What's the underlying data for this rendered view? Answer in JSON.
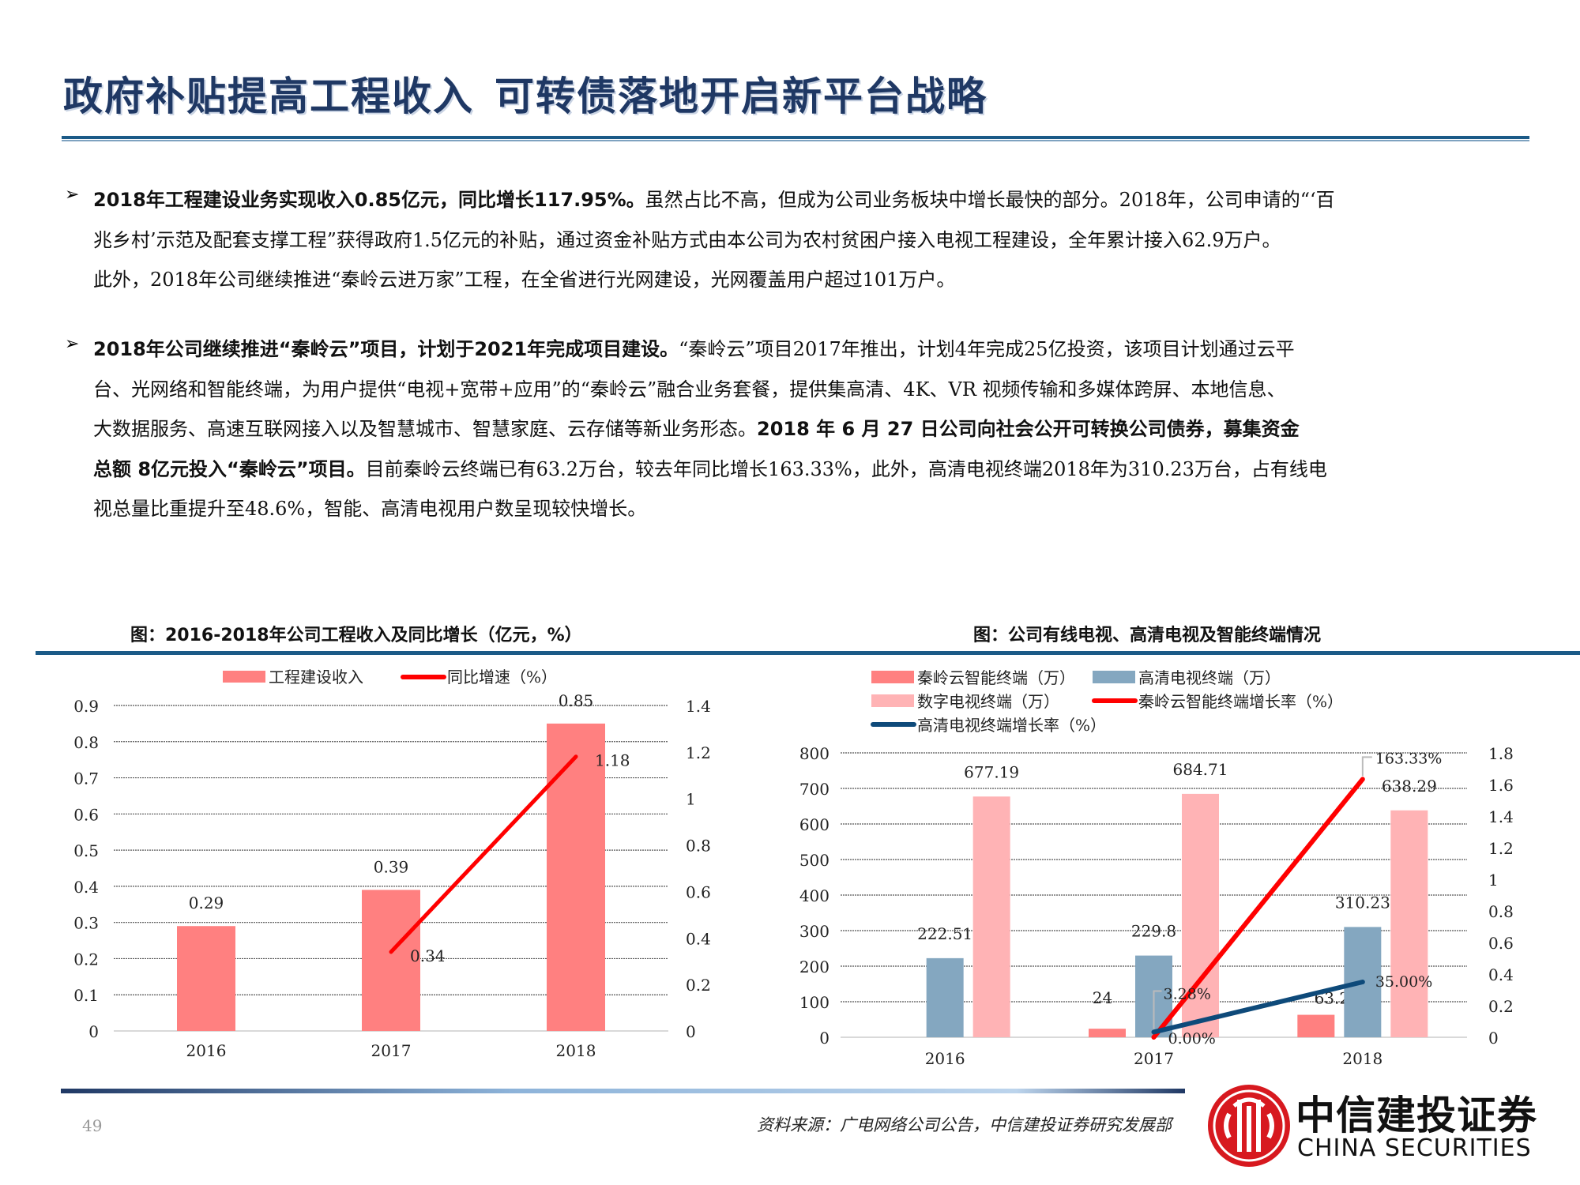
{
  "page": {
    "title_part1": "政府补贴提高工程收入",
    "title_part2": "可转债落地开启新平台战略",
    "page_number": "49",
    "source": "资料来源：广电网络公司公告，中信建投证券研究发展部"
  },
  "bullets": [
    {
      "lines": [
        [
          {
            "t": "2018年工程建设业务实现收入0.85亿元，同比增长117.95%。",
            "b": true
          },
          {
            "t": "虽然占比不高，但成为公司业务板块中增长最快的部分。2018年，公司申请的“‘百",
            "b": false
          }
        ],
        [
          {
            "t": "兆乡村’示范及配套支撑工程”获得政府1.5亿元的补贴，通过资金补贴方式由本公司为农村贫困户接入电视工程建设，全年累计接入62.9万户。",
            "b": false
          }
        ],
        [
          {
            "t": "此外，2018年公司继续推进“秦岭云进万家”工程，在全省进行光网建设，光网覆盖用户超过101万户。",
            "b": false
          }
        ]
      ]
    },
    {
      "lines": [
        [
          {
            "t": "2018年公司继续推进“秦岭云”项目，计划于2021年完成项目建设。",
            "b": true
          },
          {
            "t": "“秦岭云”项目2017年推出，计划4年完成25亿投资，该项目计划通过云平",
            "b": false
          }
        ],
        [
          {
            "t": "台、光网络和智能终端，为用户提供“电视+宽带+应用”的“秦岭云”融合业务套餐，提供集高清、4K、VR 视频传输和多媒体跨屏、本地信息、",
            "b": false
          }
        ],
        [
          {
            "t": "大数据服务、高速互联网接入以及智慧城市、智慧家庭、云存储等新业务形态。",
            "b": false
          },
          {
            "t": "2018 年 6 月 27 日公司向社会公开可转换公司债券，募集资金",
            "b": true
          }
        ],
        [
          {
            "t": "总额 8亿元投入“秦岭云”项目。",
            "b": true
          },
          {
            "t": "目前秦岭云终端已有63.2万台，较去年同比增长163.33%，此外，高清电视终端2018年为310.23万台，占有线电",
            "b": false
          }
        ],
        [
          {
            "t": "视总量比重提升至48.6%，智能、高清电视用户数呈现较快增长。",
            "b": false
          }
        ]
      ]
    }
  ],
  "bullet_symbol": "➢",
  "charts": {
    "left_title": "图：2016-2018年公司工程收入及同比增长（亿元，%）",
    "right_title": "图：公司有线电视、高清电视及智能终端情况"
  },
  "colors": {
    "title": "#1F3864",
    "rule": "#1B5A87",
    "bar_coral": "#FF8080",
    "bar_bluegray": "#84A7C0",
    "bar_pink": "#FFB3B5",
    "line_red": "#FF0000",
    "line_navy": "#0E4A7A",
    "logo_red": "#D7191F"
  },
  "logo": {
    "cn": "中信建投证券",
    "en": "CHINA SECURITIES"
  },
  "chart_data": [
    {
      "type": "bar",
      "title": "图：2016-2018年公司工程收入及同比增长（亿元，%）",
      "categories": [
        "2016",
        "2017",
        "2018"
      ],
      "series": [
        {
          "name": "工程建设收入",
          "type": "bar",
          "axis": "left",
          "values": [
            0.29,
            0.39,
            0.85
          ],
          "labels": [
            "0.29",
            "0.39",
            "0.85"
          ]
        },
        {
          "name": "同比增速（%）",
          "type": "line",
          "axis": "right",
          "values": [
            null,
            0.34,
            1.18
          ],
          "labels": [
            "",
            "0.34",
            "1.18"
          ]
        }
      ],
      "yleft": {
        "min": 0,
        "max": 0.9,
        "ticks": [
          "0",
          "0.1",
          "0.2",
          "0.3",
          "0.4",
          "0.5",
          "0.6",
          "0.7",
          "0.8",
          "0.9"
        ]
      },
      "yright": {
        "min": 0,
        "max": 1.4,
        "ticks": [
          "0",
          "0.2",
          "0.4",
          "0.6",
          "0.8",
          "1",
          "1.2",
          "1.4"
        ]
      },
      "grid": true,
      "legend_position": "top",
      "xlabel": "",
      "ylabel": ""
    },
    {
      "type": "bar",
      "title": "图：公司有线电视、高清电视及智能终端情况",
      "categories": [
        "2016",
        "2017",
        "2018"
      ],
      "series": [
        {
          "name": "秦岭云智能终端（万）",
          "type": "bar",
          "axis": "left",
          "values": [
            null,
            24,
            63.2
          ],
          "labels": [
            "",
            "24",
            "63.2"
          ]
        },
        {
          "name": "高清电视终端（万）",
          "type": "bar",
          "axis": "left",
          "values": [
            222.51,
            229.8,
            310.23
          ],
          "labels": [
            "222.51",
            "229.8",
            "310.23"
          ]
        },
        {
          "name": "数字电视终端（万）",
          "type": "bar",
          "axis": "left",
          "values": [
            677.19,
            684.71,
            638.29
          ],
          "labels": [
            "677.19",
            "684.71",
            "638.29"
          ]
        },
        {
          "name": "秦岭云智能终端增长率（%）",
          "type": "line",
          "axis": "right",
          "values": [
            null,
            0.0,
            1.6333
          ],
          "labels": [
            "",
            "0.00%",
            "163.33%"
          ]
        },
        {
          "name": "高清电视终端增长率（%）",
          "type": "line",
          "axis": "right",
          "values": [
            null,
            0.0328,
            0.35
          ],
          "labels": [
            "",
            "3.28%",
            "35.00%"
          ]
        }
      ],
      "yleft": {
        "min": 0,
        "max": 800,
        "ticks": [
          "0",
          "100",
          "200",
          "300",
          "400",
          "500",
          "600",
          "700",
          "800"
        ]
      },
      "yright": {
        "min": 0,
        "max": 1.8,
        "ticks": [
          "0",
          "0.2",
          "0.4",
          "0.6",
          "0.8",
          "1",
          "1.2",
          "1.4",
          "1.6",
          "1.8"
        ]
      },
      "grid": true,
      "legend_position": "top",
      "xlabel": "",
      "ylabel": ""
    }
  ]
}
